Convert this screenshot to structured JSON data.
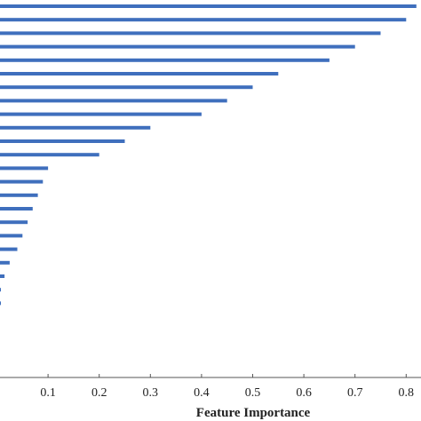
{
  "chart_data": {
    "type": "bar",
    "orientation": "horizontal",
    "title": "",
    "xlabel": "Feature Importance",
    "ylabel": "",
    "x_ticks": [
      "0.1",
      "0.2",
      "0.3",
      "0.4",
      "0.5",
      "0.6",
      "0.7",
      "0.8"
    ],
    "xlim": [
      0,
      0.82
    ],
    "grid": false,
    "legend": "none",
    "bar_color": "#3f6fbd",
    "values": [
      0.82,
      0.8,
      0.75,
      0.7,
      0.65,
      0.55,
      0.5,
      0.45,
      0.4,
      0.3,
      0.25,
      0.2,
      0.1,
      0.09,
      0.08,
      0.07,
      0.06,
      0.05,
      0.04,
      0.025,
      0.015,
      0.005,
      0.003
    ]
  }
}
